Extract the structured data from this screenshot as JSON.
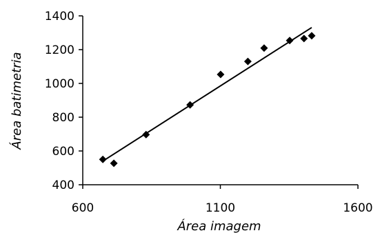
{
  "chart_data": {
    "type": "scatter",
    "title": "",
    "xlabel": "Área imagem",
    "ylabel": "Área batimetria",
    "xlim": [
      600,
      1600
    ],
    "ylim": [
      400,
      1400
    ],
    "x_ticks": [
      600,
      1100,
      1600
    ],
    "y_ticks": [
      400,
      600,
      800,
      1000,
      1200,
      1400
    ],
    "x_tick_labels": [
      "600",
      "1100",
      "1600"
    ],
    "y_tick_labels": [
      "400",
      "600",
      "800",
      "1000",
      "1200",
      "1400"
    ],
    "grid": false,
    "legend": "none",
    "marker": "diamond",
    "marker_color": "#000000",
    "series": [
      {
        "x": [
          673,
          713,
          830,
          990,
          1101,
          1200,
          1259,
          1352,
          1404,
          1432
        ],
        "y": [
          550,
          527,
          697,
          873,
          1053,
          1130,
          1209,
          1254,
          1266,
          1282
        ]
      }
    ],
    "trendline": {
      "x": [
        673,
        1432
      ],
      "y": [
        540,
        1331
      ],
      "color": "#000000"
    }
  }
}
